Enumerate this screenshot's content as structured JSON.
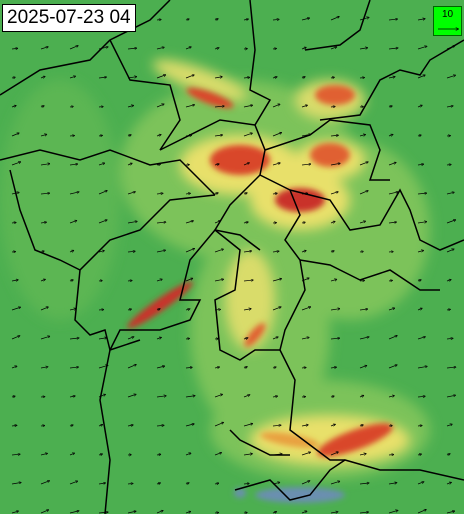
{
  "timestamp": "2025-07-23 04",
  "legend": {
    "label": "10"
  }
}
